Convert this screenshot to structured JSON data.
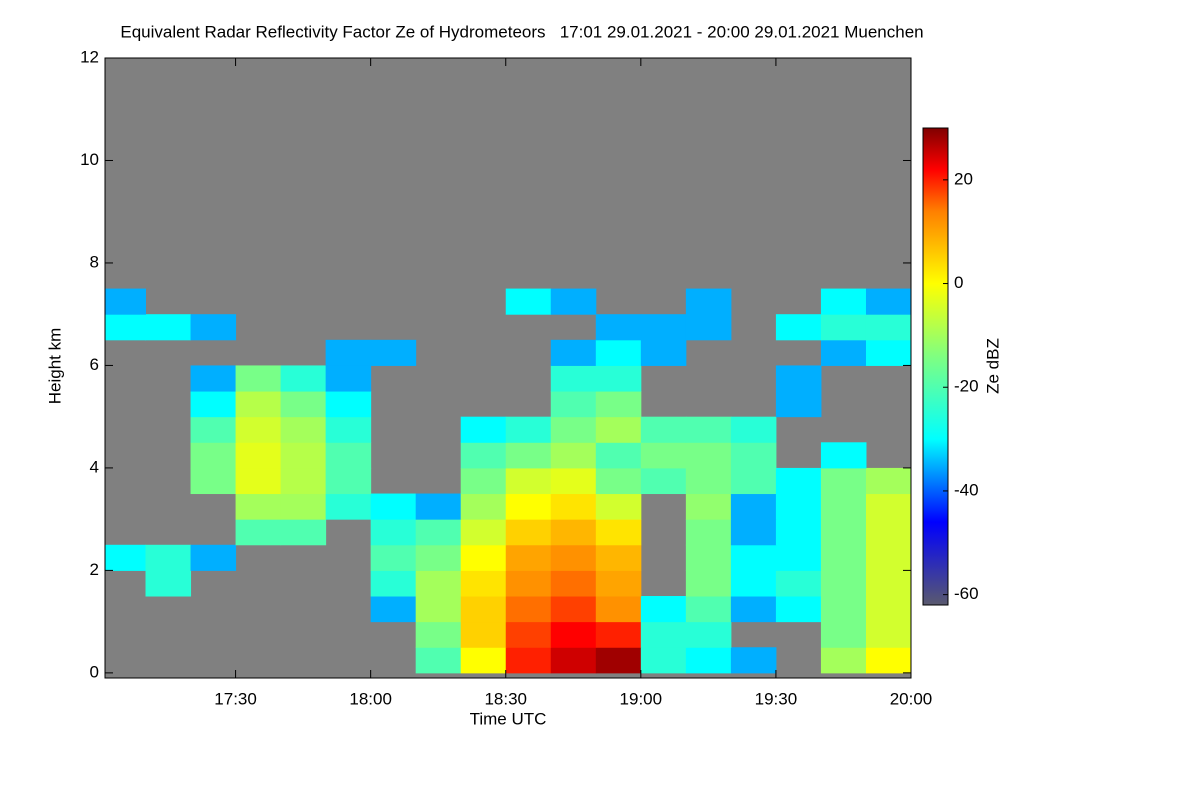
{
  "chart_data": {
    "type": "heatmap",
    "title": "Equivalent Radar Reflectivity Factor Ze of Hydrometeors   17:01 29.01.2021 - 20:00 29.01.2021 Muenchen",
    "x_label": "Time UTC",
    "y_label": "Height km",
    "colorbar_label": "Ze dBZ",
    "xlim": [
      17.0167,
      20.0
    ],
    "xticks": [
      {
        "value": 17.5,
        "label": "17:30"
      },
      {
        "value": 18.0,
        "label": "18:00"
      },
      {
        "value": 18.5,
        "label": "18:30"
      },
      {
        "value": 19.0,
        "label": "19:00"
      },
      {
        "value": 19.5,
        "label": "19:30"
      },
      {
        "value": 20.0,
        "label": "20:00"
      }
    ],
    "ylim": [
      -0.1,
      12
    ],
    "yticks": [
      0,
      2,
      4,
      6,
      8,
      10,
      12
    ],
    "zlim": [
      -62,
      30
    ],
    "zticks": [
      -60,
      -40,
      -20,
      0,
      20
    ],
    "background_color": "#808080",
    "colormap": [
      {
        "value": -62,
        "color": "#5a5a6e"
      },
      {
        "value": -46,
        "color": "#0000ff"
      },
      {
        "value": -30,
        "color": "#00ffff"
      },
      {
        "value": -14,
        "color": "#80ff80"
      },
      {
        "value": 0,
        "color": "#ffff00"
      },
      {
        "value": 14,
        "color": "#ff7f00"
      },
      {
        "value": 22,
        "color": "#ff0000"
      },
      {
        "value": 30,
        "color": "#800000"
      }
    ],
    "x": [
      17.0833,
      17.25,
      17.4167,
      17.5833,
      17.75,
      17.9167,
      18.0833,
      18.25,
      18.4167,
      18.5833,
      18.75,
      18.9167,
      19.0833,
      19.25,
      19.4167,
      19.5833,
      19.75,
      19.9167
    ],
    "y": [
      0.25,
      0.75,
      1.25,
      1.75,
      2.25,
      2.75,
      3.25,
      3.75,
      4.25,
      4.75,
      5.25,
      5.75,
      6.25,
      6.75,
      7.25
    ],
    "z": [
      [
        null,
        null,
        null,
        null,
        null,
        null,
        null,
        -20,
        0,
        20,
        25,
        28,
        -25,
        -30,
        -35,
        null,
        -10,
        0
      ],
      [
        null,
        null,
        null,
        null,
        null,
        null,
        null,
        -15,
        5,
        18,
        22,
        20,
        -25,
        -25,
        null,
        null,
        -15,
        -5
      ],
      [
        null,
        null,
        null,
        null,
        null,
        null,
        -35,
        -10,
        5,
        15,
        18,
        12,
        -30,
        -20,
        -35,
        -30,
        -15,
        -5
      ],
      [
        null,
        -25,
        null,
        null,
        null,
        null,
        -25,
        -10,
        3,
        12,
        15,
        10,
        null,
        -15,
        -30,
        -25,
        -15,
        -5
      ],
      [
        -30,
        -25,
        -35,
        null,
        null,
        null,
        -20,
        -15,
        0,
        10,
        12,
        8,
        null,
        -15,
        -30,
        -30,
        -15,
        -5
      ],
      [
        null,
        null,
        null,
        -20,
        -20,
        null,
        -25,
        -20,
        -5,
        5,
        8,
        3,
        null,
        -15,
        -35,
        -30,
        -15,
        -5
      ],
      [
        null,
        null,
        null,
        -10,
        -10,
        -25,
        -30,
        -35,
        -10,
        0,
        3,
        -5,
        null,
        -12,
        -35,
        -30,
        -15,
        -5
      ],
      [
        null,
        null,
        -15,
        -3,
        -8,
        -20,
        null,
        null,
        -15,
        -5,
        -3,
        -15,
        -20,
        -15,
        -20,
        -30,
        -15,
        -10
      ],
      [
        null,
        null,
        -15,
        -3,
        -8,
        -20,
        null,
        null,
        -20,
        -15,
        -10,
        -20,
        -15,
        -15,
        -20,
        null,
        -30,
        null
      ],
      [
        null,
        null,
        -20,
        -5,
        -10,
        -25,
        null,
        null,
        -30,
        -25,
        -15,
        -10,
        -20,
        -20,
        -25,
        null,
        null,
        null
      ],
      [
        null,
        null,
        -30,
        -8,
        -15,
        -30,
        null,
        null,
        null,
        null,
        -20,
        -15,
        null,
        null,
        null,
        -35,
        null,
        null
      ],
      [
        null,
        null,
        -35,
        -15,
        -25,
        -35,
        null,
        null,
        null,
        null,
        -25,
        -25,
        null,
        null,
        null,
        -35,
        null,
        null
      ],
      [
        null,
        null,
        null,
        null,
        null,
        -35,
        -35,
        null,
        null,
        null,
        -35,
        -30,
        -35,
        null,
        null,
        null,
        -35,
        -30
      ],
      [
        -30,
        -30,
        -35,
        null,
        null,
        null,
        null,
        null,
        null,
        null,
        null,
        -35,
        -35,
        -35,
        null,
        -30,
        -25,
        -25
      ],
      [
        -35,
        null,
        null,
        null,
        null,
        null,
        null,
        null,
        null,
        -30,
        -35,
        null,
        null,
        -35,
        null,
        null,
        -30,
        -35
      ]
    ]
  }
}
